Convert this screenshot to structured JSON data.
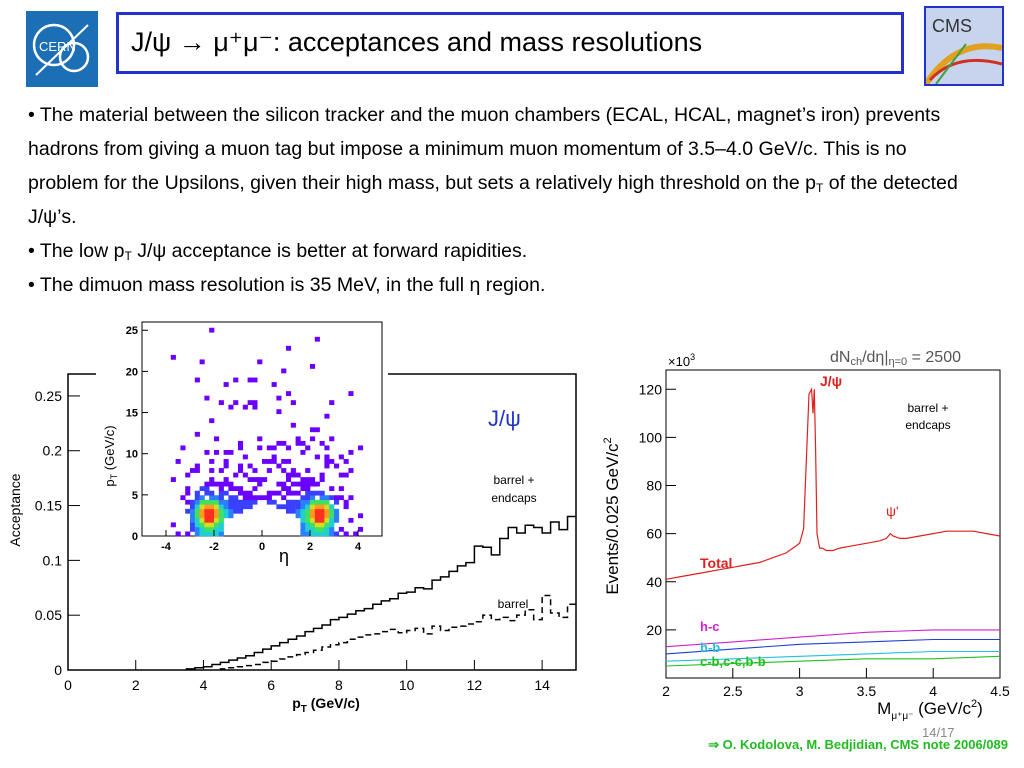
{
  "title": "J/ψ → μ⁺μ⁻: acceptances and mass resolutions",
  "logos": {
    "left": "CERN",
    "right": "CMS"
  },
  "bullets": [
    "• The material between the silicon tracker and the muon chambers (ECAL, HCAL, magnet’s iron) prevents hadrons from giving a muon tag but impose a minimum muon momentum of 3.5–4.0 GeV/c. This is no problem for the Upsilons, given their high mass, but sets a relatively high threshold on the p",
    "T",
    " of the detected J/ψ’s.",
    "• The low p",
    "T",
    " J/ψ acceptance is better at forward rapidities.",
    "• The dimuon mass resolution is 35 MeV, in the full η region."
  ],
  "chart_data": [
    {
      "type": "line",
      "xlabel": "p",
      "xlabel_sub": "T",
      "xlabel_unit": " (GeV/c)",
      "ylabel": "Acceptance",
      "xlim": [
        0,
        15
      ],
      "ylim": [
        0,
        0.27
      ],
      "x_ticks": [
        "0",
        "2",
        "4",
        "6",
        "8",
        "10",
        "12",
        "14"
      ],
      "y_ticks": [
        "0",
        "0.05",
        "0.1",
        "0.15",
        "0.2",
        "0.25"
      ],
      "annotation": "J/ψ",
      "series": [
        {
          "name": "barrel + endcaps",
          "style": "solid",
          "x": [
            3.5,
            3.75,
            4.0,
            4.25,
            4.5,
            4.75,
            5.0,
            5.25,
            5.5,
            5.75,
            6.0,
            6.25,
            6.5,
            6.75,
            7.0,
            7.25,
            7.5,
            7.75,
            8.0,
            8.25,
            8.5,
            8.75,
            9.0,
            9.25,
            9.5,
            9.75,
            10.0,
            10.25,
            10.5,
            10.75,
            11.0,
            11.25,
            11.5,
            11.75,
            12.0,
            12.25,
            12.5,
            12.75,
            13.0,
            13.25,
            13.5,
            13.75,
            14.0,
            14.25,
            14.5,
            14.75
          ],
          "values": [
            0.001,
            0.002,
            0.003,
            0.005,
            0.007,
            0.009,
            0.011,
            0.013,
            0.016,
            0.019,
            0.022,
            0.025,
            0.028,
            0.031,
            0.035,
            0.038,
            0.041,
            0.046,
            0.048,
            0.051,
            0.054,
            0.056,
            0.06,
            0.063,
            0.065,
            0.07,
            0.071,
            0.075,
            0.074,
            0.082,
            0.085,
            0.09,
            0.095,
            0.098,
            0.113,
            0.112,
            0.105,
            0.12,
            0.13,
            0.125,
            0.132,
            0.13,
            0.125,
            0.135,
            0.128,
            0.14
          ]
        },
        {
          "name": "barrel",
          "style": "dashed",
          "x": [
            4.5,
            4.75,
            5.0,
            5.25,
            5.5,
            5.75,
            6.0,
            6.25,
            6.5,
            6.75,
            7.0,
            7.25,
            7.5,
            7.75,
            8.0,
            8.25,
            8.5,
            8.75,
            9.0,
            9.25,
            9.5,
            9.75,
            10.0,
            10.25,
            10.5,
            10.75,
            11.0,
            11.25,
            11.5,
            11.75,
            12.0,
            12.25,
            12.5,
            12.75,
            13.0,
            13.25,
            13.5,
            13.75,
            14.0,
            14.25,
            14.5,
            14.75
          ],
          "values": [
            0.001,
            0.002,
            0.003,
            0.004,
            0.005,
            0.007,
            0.008,
            0.01,
            0.012,
            0.014,
            0.016,
            0.018,
            0.021,
            0.023,
            0.025,
            0.028,
            0.03,
            0.032,
            0.033,
            0.035,
            0.037,
            0.034,
            0.036,
            0.038,
            0.033,
            0.04,
            0.036,
            0.039,
            0.04,
            0.042,
            0.044,
            0.05,
            0.046,
            0.048,
            0.045,
            0.05,
            0.055,
            0.046,
            0.068,
            0.052,
            0.048,
            0.06
          ]
        }
      ]
    },
    {
      "type": "heatmap",
      "xlabel": "η",
      "ylabel": "p",
      "ylabel_sub": "T",
      "ylabel_unit": " (GeV/c)",
      "xlim": [
        -5,
        5
      ],
      "ylim": [
        0,
        26
      ],
      "x_ticks": [
        "-4",
        "-2",
        "0",
        "2",
        "4"
      ],
      "y_ticks": [
        "0",
        "5",
        "10",
        "15",
        "20",
        "25"
      ],
      "hotspots": [
        {
          "eta": -2.3,
          "pt": 2.5,
          "level": 1.0
        },
        {
          "eta": 2.3,
          "pt": 2.5,
          "level": 1.0
        }
      ]
    },
    {
      "type": "line",
      "ylabel": "Events/0.025 GeV/c",
      "ylabel_sup": "2",
      "yscale_note": "×10",
      "yscale_sup": "3",
      "xlabel": "M",
      "xlabel_sub": "μ⁺μ⁻",
      "xlabel_unit": " (GeV/c",
      "xlabel_unit_sup": "2",
      "xlabel_close": ")",
      "corner_note": "dN",
      "corner_note_sub": "ch",
      "corner_note_rest": "/dη|",
      "corner_note_sub2": "η=0",
      "corner_note_end": " = 2500",
      "xlim": [
        2,
        4.5
      ],
      "ylim": [
        0,
        128
      ],
      "x_ticks": [
        "2",
        "2.5",
        "3",
        "3.5",
        "4",
        "4.5"
      ],
      "y_ticks": [
        "20",
        "40",
        "60",
        "80",
        "100",
        "120"
      ],
      "labels": {
        "jpsi": "J/ψ",
        "psiprime": "ψ'",
        "barrel_endcaps": "barrel + endcaps"
      },
      "colors": {
        "total": "#e02020",
        "hc": "#d020d0",
        "hb": "#20c0e0",
        "cbcb": "#20c020",
        "other": "#2040d0"
      },
      "series": [
        {
          "name": "Total",
          "x": [
            2.0,
            2.1,
            2.2,
            2.3,
            2.4,
            2.5,
            2.6,
            2.7,
            2.8,
            2.9,
            2.95,
            3.0,
            3.03,
            3.05,
            3.07,
            3.09,
            3.1,
            3.11,
            3.12,
            3.13,
            3.15,
            3.17,
            3.2,
            3.25,
            3.3,
            3.4,
            3.5,
            3.6,
            3.65,
            3.68,
            3.7,
            3.75,
            3.8,
            3.9,
            4.0,
            4.1,
            4.2,
            4.3,
            4.4,
            4.5
          ],
          "values": [
            41,
            42,
            43,
            44,
            45,
            46,
            47,
            48,
            50,
            52,
            54,
            56,
            62,
            90,
            118,
            120,
            110,
            120,
            95,
            60,
            54,
            54,
            53,
            53,
            54,
            55,
            56,
            57,
            58,
            60,
            59,
            58,
            58,
            59,
            60,
            61,
            61,
            61,
            60,
            59
          ]
        },
        {
          "name": "h-c",
          "x": [
            2.0,
            2.5,
            3.0,
            3.5,
            4.0,
            4.5
          ],
          "values": [
            13,
            15,
            17,
            19,
            20,
            20
          ]
        },
        {
          "name": "",
          "x": [
            2.0,
            2.5,
            3.0,
            3.5,
            4.0,
            4.5
          ],
          "values": [
            10,
            12,
            14,
            15,
            16,
            16
          ]
        },
        {
          "name": "h-b",
          "x": [
            2.0,
            2.5,
            3.0,
            3.5,
            4.0,
            4.5
          ],
          "values": [
            7,
            8,
            9,
            10,
            11,
            11
          ]
        },
        {
          "name": "c-b,c-c,b-b",
          "x": [
            2.0,
            2.5,
            3.0,
            3.5,
            4.0,
            4.5
          ],
          "values": [
            5,
            6,
            7,
            8,
            8,
            9
          ]
        }
      ]
    }
  ],
  "page_number": "14/17",
  "footer": "⇒ O. Kodolova, M. Bedjidian, CMS note 2006/089"
}
